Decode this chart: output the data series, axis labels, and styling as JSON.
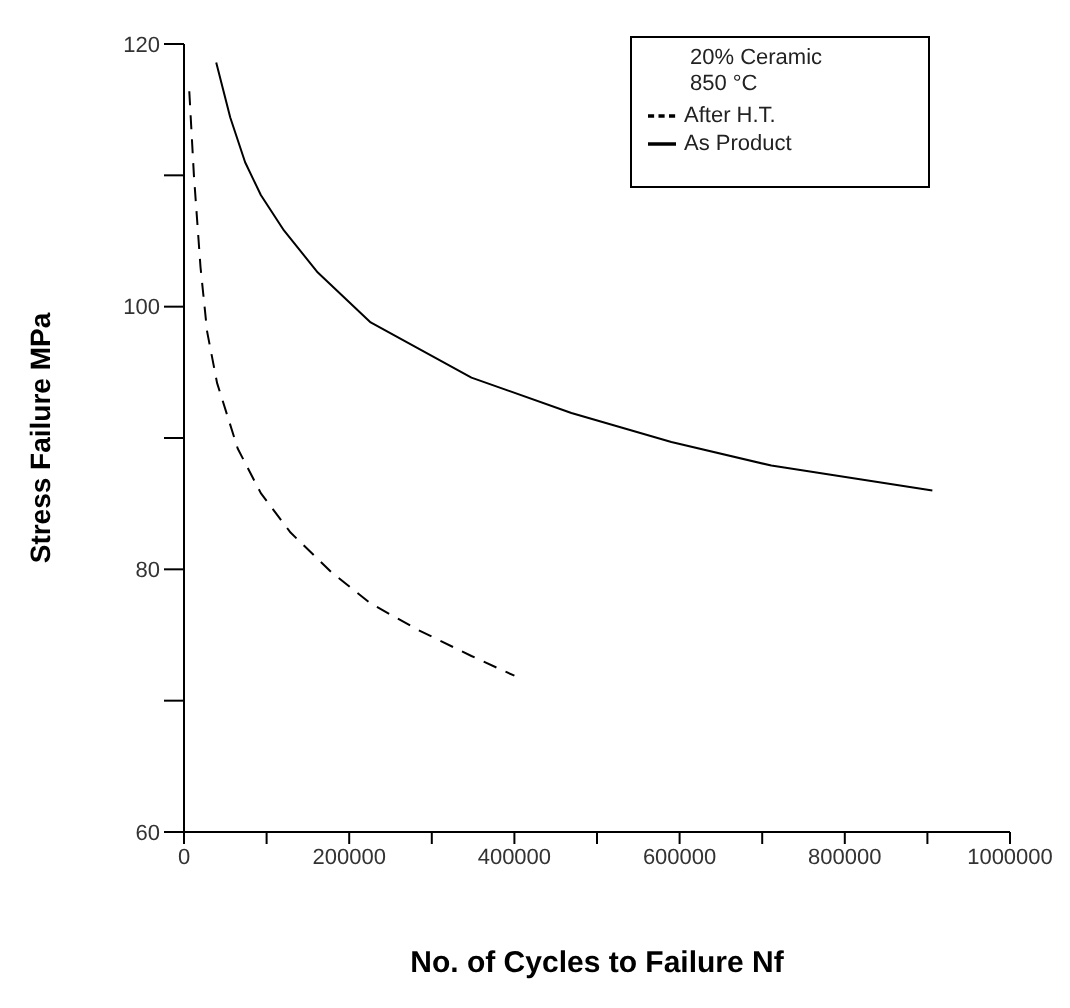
{
  "chart_data": {
    "type": "line",
    "xlabel": "No. of Cycles to Failure Nf",
    "ylabel": "Stress Failure MPa",
    "legend_title": "20% Ceramic\n850 °C",
    "legend": "top right",
    "grid": false,
    "marker": "none",
    "xlim": [
      0,
      1000000
    ],
    "xticks": [
      0,
      {
        "value": 100000,
        "label": null
      },
      200000,
      {
        "value": 300000,
        "label": null
      },
      400000,
      {
        "value": 500000,
        "label": null
      },
      600000,
      {
        "value": 700000,
        "label": null
      },
      800000,
      {
        "value": 900000,
        "label": null
      },
      1000000
    ],
    "ylim": [
      60,
      120
    ],
    "yticks": [
      60,
      {
        "value": 70,
        "label": null
      },
      80,
      {
        "value": 90,
        "label": null
      },
      100,
      {
        "value": 110,
        "label": null
      },
      120
    ],
    "series": [
      {
        "name": "After H.T.",
        "color": "#000000",
        "line_style": "dashed",
        "x": [
          6400,
          12000,
          20000,
          28000,
          40000,
          65000,
          93000,
          129000,
          178000,
          226000,
          283000,
          348000,
          400000
        ],
        "values": [
          116.4,
          110,
          103,
          98.1,
          94.2,
          89.2,
          85.8,
          82.8,
          79.8,
          77.4,
          75.4,
          73.4,
          71.9
        ]
      },
      {
        "name": "As Product",
        "color": "#000000",
        "line_style": "solid",
        "x": [
          39000,
          56000,
          74000,
          93000,
          121000,
          162000,
          226000,
          348000,
          469000,
          590000,
          711000,
          906000
        ],
        "values": [
          118.6,
          114.4,
          111,
          108.5,
          105.8,
          102.6,
          98.8,
          94.6,
          91.9,
          89.7,
          87.9,
          86.0
        ]
      }
    ]
  }
}
